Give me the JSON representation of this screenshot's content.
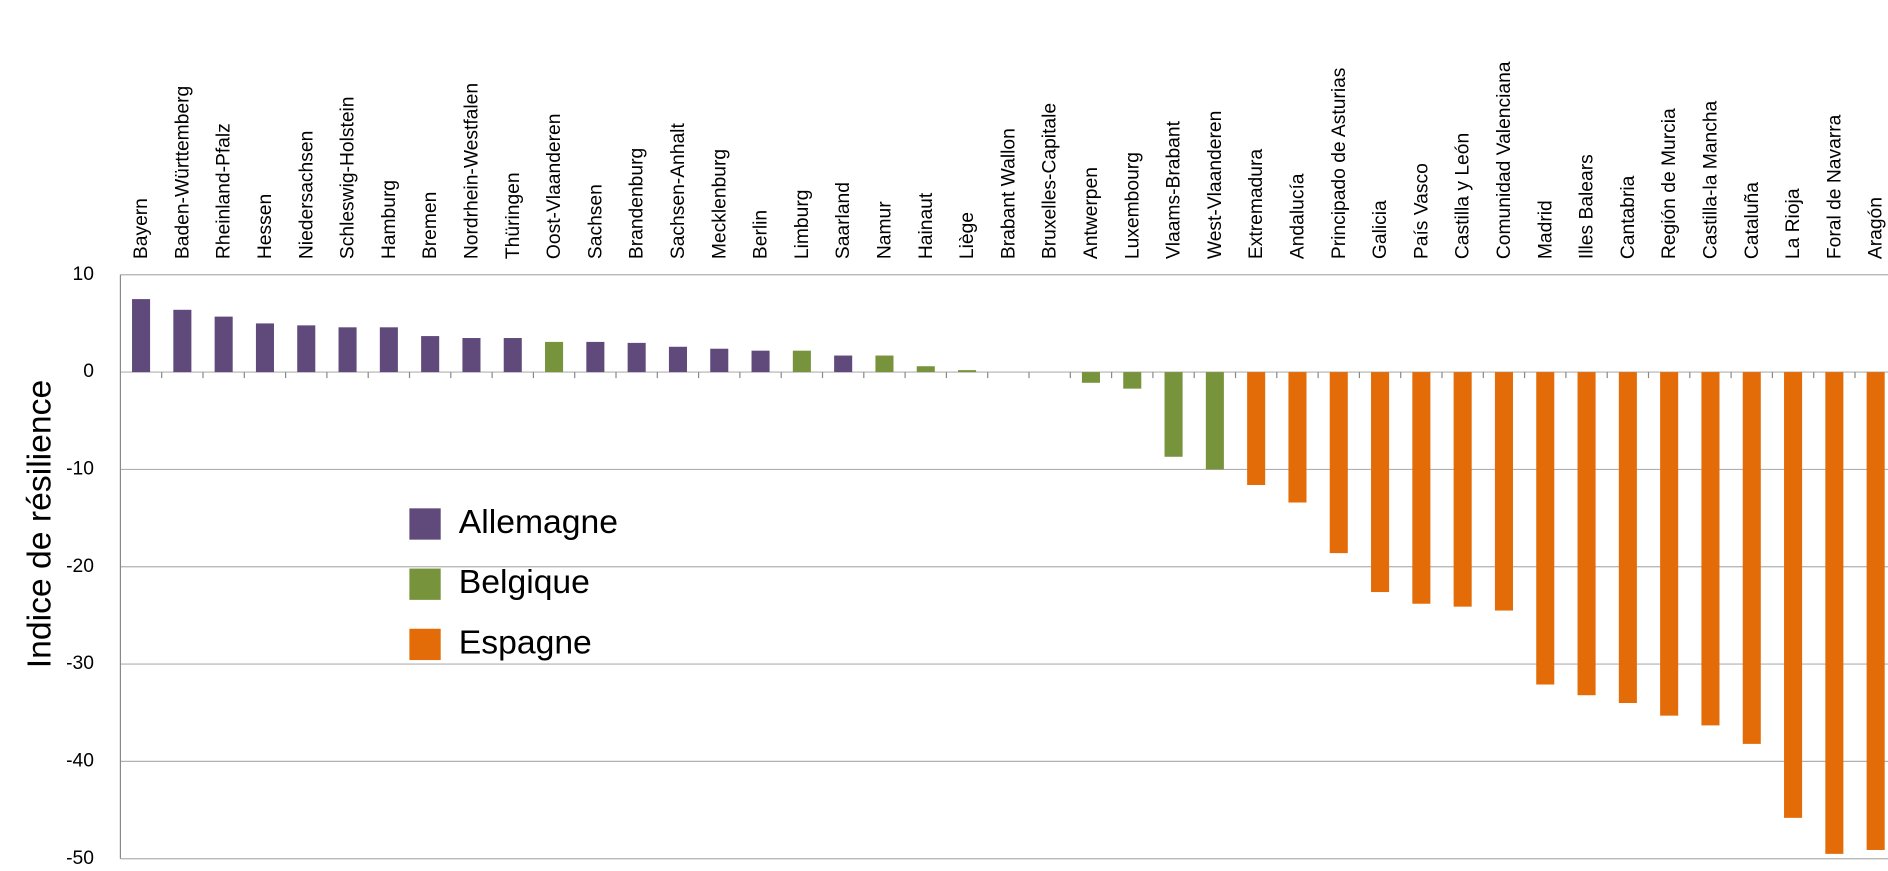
{
  "chart_data": {
    "type": "bar",
    "y_label": "Indice de résilience",
    "categories": [
      "Bayern",
      "Baden-Württemberg",
      "Rheinland-Pfalz",
      "Hessen",
      "Niedersachsen",
      "Schleswig-Holstein",
      "Hamburg",
      "Bremen",
      "Nordrhein-Westfalen",
      "Thüringen",
      "Oost-Vlaanderen",
      "Sachsen",
      "Brandenburg",
      "Sachsen-Anhalt",
      "Mecklenburg",
      "Berlin",
      "Limburg",
      "Saarland",
      "Namur",
      "Hainaut",
      "Liège",
      "Brabant Wallon",
      "Bruxelles-Capitale",
      "Antwerpen",
      "Luxembourg",
      "Vlaams-Brabant",
      "West-Vlaanderen",
      "Extremadura",
      "Andalucía",
      "Principado de Asturias",
      "Galicia",
      "País Vasco",
      "Castilla y León",
      "Comunidad Valenciana",
      "Madrid",
      "Illes Balears",
      "Cantabria",
      "Región de Murcia",
      "Castilla-la Mancha",
      "Cataluña",
      "La Rioja",
      "Foral de Navarra",
      "Aragón"
    ],
    "series": [
      {
        "name": "Allemagne",
        "color": "#604a7b",
        "values": [
          7.5,
          6.4,
          5.7,
          5.0,
          4.8,
          4.6,
          4.6,
          3.7,
          3.5,
          3.5,
          null,
          3.1,
          3.0,
          2.6,
          2.4,
          2.2,
          null,
          1.7,
          null,
          null,
          null,
          null,
          null,
          null,
          null,
          null,
          null,
          null,
          null,
          null,
          null,
          null,
          null,
          null,
          null,
          null,
          null,
          null,
          null,
          null,
          null,
          null,
          null
        ]
      },
      {
        "name": "Belgique",
        "color": "#77933c",
        "values": [
          null,
          null,
          null,
          null,
          null,
          null,
          null,
          null,
          null,
          null,
          3.1,
          null,
          null,
          null,
          null,
          null,
          2.2,
          null,
          1.7,
          0.6,
          0.2,
          0,
          0,
          -1.1,
          -1.7,
          -8.7,
          -10.0,
          null,
          null,
          null,
          null,
          null,
          null,
          null,
          null,
          null,
          null,
          null,
          null,
          null,
          null,
          null,
          null
        ]
      },
      {
        "name": "Espagne",
        "color": "#e36c09",
        "values": [
          null,
          null,
          null,
          null,
          null,
          null,
          null,
          null,
          null,
          null,
          null,
          null,
          null,
          null,
          null,
          null,
          null,
          null,
          null,
          null,
          null,
          null,
          null,
          null,
          null,
          null,
          null,
          -11.6,
          -13.4,
          -18.6,
          -22.6,
          -23.8,
          -24.1,
          -24.5,
          -32.1,
          -33.2,
          -34.0,
          -35.3,
          -36.3,
          -38.2,
          -45.8,
          -49.5,
          -49.1
        ]
      }
    ],
    "ylim": [
      -50,
      10
    ],
    "yticks": [
      -50,
      -40,
      -30,
      -20,
      -10,
      0,
      10
    ],
    "grid": true
  }
}
